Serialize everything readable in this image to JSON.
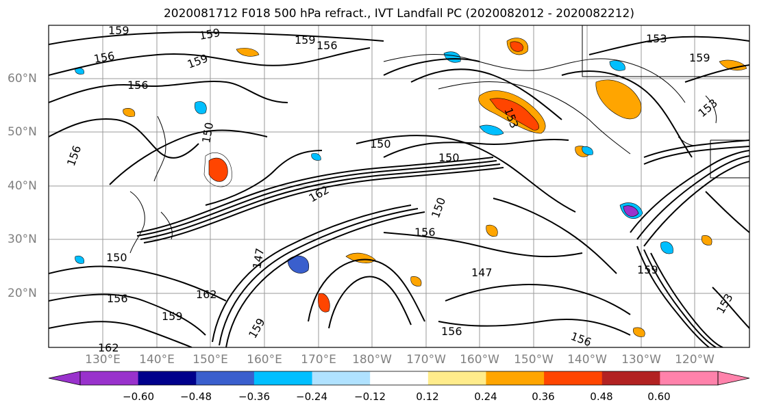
{
  "title": "2020081712 F018 500 hPa refract., IVT Landfall PC (2020082012 - 2020082212)",
  "lat_labels": [
    "60°N",
    "50°N",
    "40°N",
    "30°N",
    "20°N"
  ],
  "lon_labels": [
    "130°E",
    "140°E",
    "150°E",
    "160°E",
    "170°E",
    "180°W",
    "170°W",
    "160°W",
    "150°W",
    "140°W",
    "130°W",
    "120°W"
  ],
  "colorbar": {
    "colors": [
      "#9932cc",
      "#00008b",
      "#3a5fcd",
      "#00bfff",
      "#b0e2ff",
      "#ffffff",
      "#ffec8b",
      "#ffa500",
      "#ff4500",
      "#b22222",
      "#ff82ab"
    ],
    "tick_labels": [
      "−0.60",
      "−0.48",
      "−0.36",
      "−0.24",
      "−0.12",
      "0.12",
      "0.24",
      "0.36",
      "0.48",
      "0.60"
    ]
  },
  "contour_labels": [
    "159",
    "159",
    "159",
    "156",
    "156",
    "159",
    "156",
    "153",
    "159",
    "153",
    "150",
    "150",
    "150",
    "162",
    "150",
    "156",
    "153",
    "147",
    "156",
    "147",
    "162",
    "150",
    "156",
    "159",
    "156",
    "159",
    "153",
    "159",
    "162",
    "156"
  ]
}
